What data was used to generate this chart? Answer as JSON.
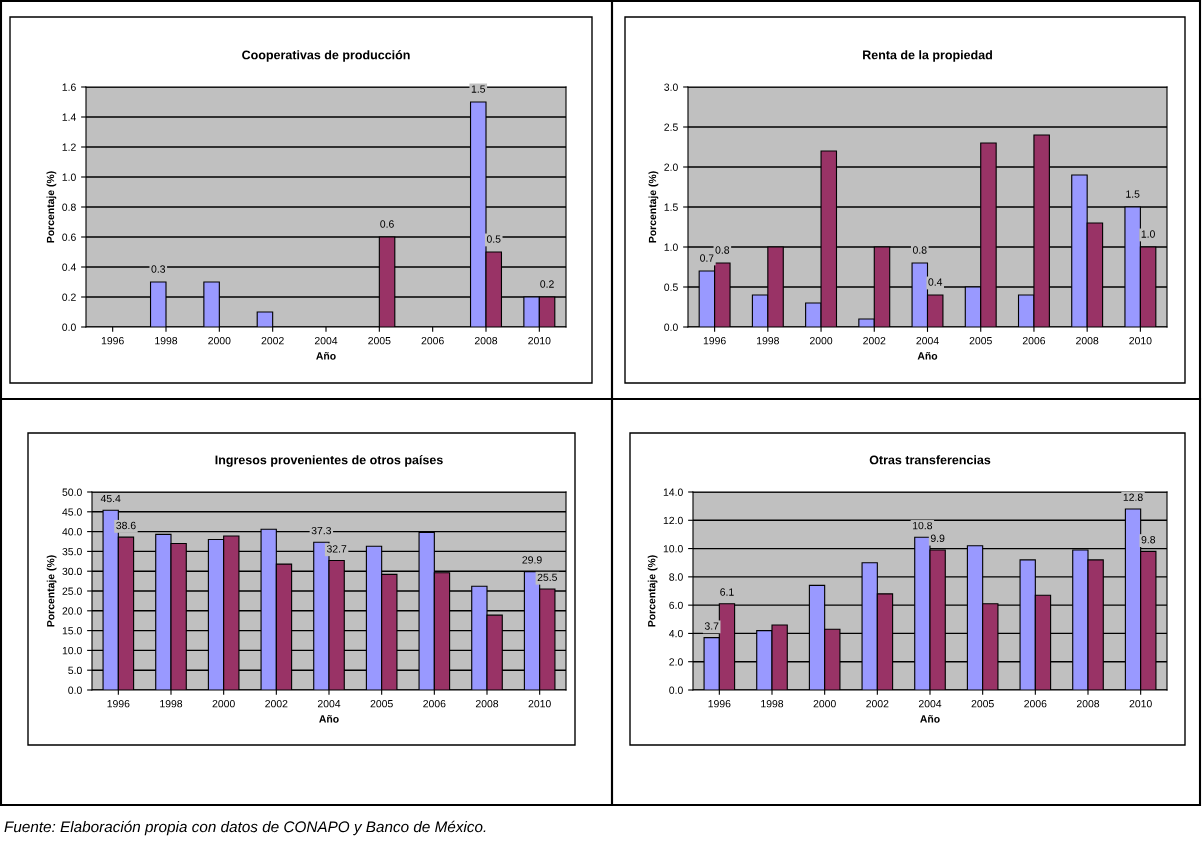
{
  "chart_data": [
    {
      "type": "bar",
      "title": "Cooperativas de producción",
      "xlabel": "Año",
      "ylabel": "Porcentaje (%)",
      "categories": [
        "1996",
        "1998",
        "2000",
        "2002",
        "2004",
        "2005",
        "2006",
        "2008",
        "2010"
      ],
      "series": [
        {
          "color": "#9999ff",
          "values": [
            null,
            0.3,
            0.3,
            0.1,
            null,
            null,
            null,
            1.5,
            0.2
          ],
          "value_labels": [
            null,
            "0.3",
            null,
            null,
            null,
            null,
            null,
            "1.5",
            null
          ]
        },
        {
          "color": "#993366",
          "values": [
            null,
            null,
            null,
            null,
            null,
            0.6,
            null,
            0.5,
            0.2
          ],
          "value_labels": [
            null,
            null,
            null,
            null,
            null,
            "0.6",
            null,
            "0.5",
            "0.2"
          ]
        }
      ],
      "ylim": [
        0,
        1.6
      ],
      "yticks": [
        {
          "value": 0,
          "label": "0.0"
        },
        {
          "value": 0.2,
          "label": "0.2"
        },
        {
          "value": 0.4,
          "label": "0.4"
        },
        {
          "value": 0.6,
          "label": "0.6"
        },
        {
          "value": 0.8,
          "label": "0.8"
        },
        {
          "value": 1.0,
          "label": "1.0"
        },
        {
          "value": 1.2,
          "label": "1.2"
        },
        {
          "value": 1.4,
          "label": "1.4"
        },
        {
          "value": 1.6,
          "label": "1.6"
        }
      ],
      "grid": "y"
    },
    {
      "type": "bar",
      "title": "Renta de la propiedad",
      "xlabel": "Año",
      "ylabel": "Porcentaje (%)",
      "categories": [
        "1996",
        "1998",
        "2000",
        "2002",
        "2004",
        "2005",
        "2006",
        "2008",
        "2010"
      ],
      "series": [
        {
          "color": "#9999ff",
          "values": [
            0.7,
            0.4,
            0.3,
            0.1,
            0.8,
            0.5,
            0.4,
            1.9,
            1.5
          ],
          "value_labels": [
            "0.7",
            null,
            null,
            null,
            "0.8",
            null,
            null,
            null,
            "1.5"
          ]
        },
        {
          "color": "#993366",
          "values": [
            0.8,
            1.0,
            2.2,
            1.0,
            0.4,
            2.3,
            2.4,
            1.3,
            1.0
          ],
          "value_labels": [
            "0.8",
            null,
            null,
            null,
            "0.4",
            null,
            null,
            null,
            "1.0"
          ]
        }
      ],
      "ylim": [
        0,
        3
      ],
      "yticks": [
        {
          "value": 0,
          "label": "0.0"
        },
        {
          "value": 0.5,
          "label": "0.5"
        },
        {
          "value": 1.0,
          "label": "1.0"
        },
        {
          "value": 1.5,
          "label": "1.5"
        },
        {
          "value": 2.0,
          "label": "2.0"
        },
        {
          "value": 2.5,
          "label": "2.5"
        },
        {
          "value": 3.0,
          "label": "3.0"
        }
      ],
      "grid": "y"
    },
    {
      "type": "bar",
      "title": "Ingresos provenientes de otros países",
      "xlabel": "Año",
      "ylabel": "Porcentaje (%)",
      "categories": [
        "1996",
        "1998",
        "2000",
        "2002",
        "2004",
        "2005",
        "2006",
        "2008",
        "2010"
      ],
      "series": [
        {
          "color": "#9999ff",
          "values": [
            45.4,
            39.3,
            38.0,
            40.6,
            37.3,
            36.3,
            39.8,
            26.2,
            29.9
          ],
          "value_labels": [
            "45.4",
            null,
            null,
            null,
            "37.3",
            null,
            null,
            null,
            "29.9"
          ]
        },
        {
          "color": "#993366",
          "values": [
            38.6,
            37.0,
            38.9,
            31.8,
            32.7,
            29.2,
            29.6,
            18.9,
            25.5
          ],
          "value_labels": [
            "38.6",
            null,
            null,
            null,
            "32.7",
            null,
            null,
            null,
            "25.5"
          ]
        }
      ],
      "ylim": [
        0,
        50
      ],
      "yticks": [
        {
          "value": 0,
          "label": "0.0"
        },
        {
          "value": 5,
          "label": "5.0"
        },
        {
          "value": 10,
          "label": "10.0"
        },
        {
          "value": 15,
          "label": "15.0"
        },
        {
          "value": 20,
          "label": "20.0"
        },
        {
          "value": 25,
          "label": "25.0"
        },
        {
          "value": 30,
          "label": "30.0"
        },
        {
          "value": 35,
          "label": "35.0"
        },
        {
          "value": 40,
          "label": "40.0"
        },
        {
          "value": 45,
          "label": "45.0"
        },
        {
          "value": 50,
          "label": "50.0"
        }
      ],
      "grid": "y"
    },
    {
      "type": "bar",
      "title": "Otras transferencias",
      "xlabel": "Año",
      "ylabel": "Porcentaje (%)",
      "categories": [
        "1996",
        "1998",
        "2000",
        "2002",
        "2004",
        "2005",
        "2006",
        "2008",
        "2010"
      ],
      "series": [
        {
          "color": "#9999ff",
          "values": [
            3.7,
            4.2,
            7.4,
            9.0,
            10.8,
            10.2,
            9.2,
            9.9,
            12.8
          ],
          "value_labels": [
            "3.7",
            null,
            null,
            null,
            "10.8",
            null,
            null,
            null,
            "12.8"
          ]
        },
        {
          "color": "#993366",
          "values": [
            6.1,
            4.6,
            4.3,
            6.8,
            9.9,
            6.1,
            6.7,
            9.2,
            9.8
          ],
          "value_labels": [
            "6.1",
            null,
            null,
            null,
            "9.9",
            null,
            null,
            null,
            "9.8"
          ]
        }
      ],
      "ylim": [
        0,
        14
      ],
      "yticks": [
        {
          "value": 0,
          "label": "0.0"
        },
        {
          "value": 2,
          "label": "2.0"
        },
        {
          "value": 4,
          "label": "4.0"
        },
        {
          "value": 6,
          "label": "6.0"
        },
        {
          "value": 8,
          "label": "8.0"
        },
        {
          "value": 10,
          "label": "10.0"
        },
        {
          "value": 12,
          "label": "12.0"
        },
        {
          "value": 14,
          "label": "14.0"
        }
      ],
      "grid": "y",
      "annotations": [
        "Fuente: Elaboración propia con datos de CONAPO y Banco de México."
      ]
    }
  ]
}
